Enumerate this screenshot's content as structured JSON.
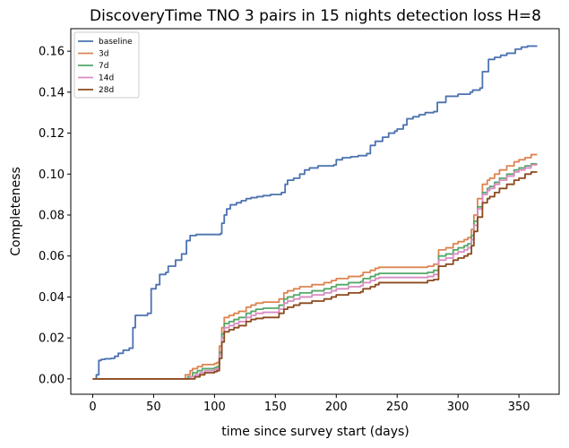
{
  "chart_data": {
    "type": "line",
    "title": "DiscoveryTime TNO 3 pairs in 15 nights detection loss H=8",
    "xlabel": "time since survey start (days)",
    "ylabel": "Completeness",
    "xlim": [
      -18,
      383
    ],
    "ylim": [
      -0.0075,
      0.171
    ],
    "x_ticks": [
      0,
      50,
      100,
      150,
      200,
      250,
      300,
      350
    ],
    "x_tick_labels": [
      "0",
      "50",
      "100",
      "150",
      "200",
      "250",
      "300",
      "350"
    ],
    "y_ticks": [
      0.0,
      0.02,
      0.04,
      0.06,
      0.08,
      0.1,
      0.12,
      0.14,
      0.16
    ],
    "y_tick_labels": [
      "0.00",
      "0.02",
      "0.04",
      "0.06",
      "0.08",
      "0.10",
      "0.12",
      "0.14",
      "0.16"
    ],
    "grid": false,
    "legend_position": "top-left",
    "series": [
      {
        "name": "baseline",
        "color": "#4c72b0",
        "points": [
          [
            0,
            0
          ],
          [
            3,
            0.002
          ],
          [
            5,
            0.009
          ],
          [
            7,
            0.0095
          ],
          [
            10,
            0.0098
          ],
          [
            15,
            0.01
          ],
          [
            18,
            0.011
          ],
          [
            21,
            0.0125
          ],
          [
            25,
            0.014
          ],
          [
            30,
            0.015
          ],
          [
            33,
            0.025
          ],
          [
            35,
            0.031
          ],
          [
            45,
            0.032
          ],
          [
            48,
            0.044
          ],
          [
            52,
            0.046
          ],
          [
            55,
            0.051
          ],
          [
            60,
            0.052
          ],
          [
            62,
            0.055
          ],
          [
            68,
            0.058
          ],
          [
            73,
            0.061
          ],
          [
            77,
            0.0675
          ],
          [
            80,
            0.07
          ],
          [
            85,
            0.0705
          ],
          [
            105,
            0.071
          ],
          [
            106,
            0.076
          ],
          [
            108,
            0.08
          ],
          [
            110,
            0.083
          ],
          [
            113,
            0.085
          ],
          [
            118,
            0.086
          ],
          [
            122,
            0.087
          ],
          [
            126,
            0.088
          ],
          [
            130,
            0.0885
          ],
          [
            135,
            0.089
          ],
          [
            140,
            0.0895
          ],
          [
            146,
            0.09
          ],
          [
            150,
            0.09
          ],
          [
            155,
            0.091
          ],
          [
            158,
            0.095
          ],
          [
            160,
            0.097
          ],
          [
            165,
            0.098
          ],
          [
            170,
            0.1
          ],
          [
            174,
            0.102
          ],
          [
            178,
            0.103
          ],
          [
            185,
            0.104
          ],
          [
            198,
            0.1045
          ],
          [
            200,
            0.107
          ],
          [
            205,
            0.108
          ],
          [
            212,
            0.1085
          ],
          [
            218,
            0.109
          ],
          [
            225,
            0.11
          ],
          [
            228,
            0.114
          ],
          [
            232,
            0.116
          ],
          [
            238,
            0.118
          ],
          [
            243,
            0.12
          ],
          [
            248,
            0.121
          ],
          [
            250,
            0.122
          ],
          [
            255,
            0.124
          ],
          [
            258,
            0.127
          ],
          [
            263,
            0.128
          ],
          [
            268,
            0.129
          ],
          [
            273,
            0.13
          ],
          [
            280,
            0.1305
          ],
          [
            283,
            0.135
          ],
          [
            290,
            0.138
          ],
          [
            300,
            0.139
          ],
          [
            310,
            0.14
          ],
          [
            312,
            0.141
          ],
          [
            318,
            0.142
          ],
          [
            320,
            0.15
          ],
          [
            325,
            0.156
          ],
          [
            330,
            0.157
          ],
          [
            335,
            0.158
          ],
          [
            340,
            0.159
          ],
          [
            347,
            0.161
          ],
          [
            352,
            0.162
          ],
          [
            357,
            0.1625
          ],
          [
            365,
            0.1625
          ]
        ]
      },
      {
        "name": "3d",
        "color": "#dd8452",
        "points": [
          [
            0,
            0
          ],
          [
            74,
            0
          ],
          [
            76,
            0.002
          ],
          [
            80,
            0.004
          ],
          [
            82,
            0.005
          ],
          [
            86,
            0.006
          ],
          [
            90,
            0.007
          ],
          [
            100,
            0.0075
          ],
          [
            102,
            0.008
          ],
          [
            104,
            0.016
          ],
          [
            106,
            0.025
          ],
          [
            108,
            0.03
          ],
          [
            112,
            0.031
          ],
          [
            116,
            0.032
          ],
          [
            120,
            0.033
          ],
          [
            126,
            0.035
          ],
          [
            130,
            0.036
          ],
          [
            134,
            0.037
          ],
          [
            140,
            0.0375
          ],
          [
            150,
            0.0375
          ],
          [
            153,
            0.039
          ],
          [
            157,
            0.042
          ],
          [
            160,
            0.043
          ],
          [
            165,
            0.044
          ],
          [
            170,
            0.045
          ],
          [
            180,
            0.046
          ],
          [
            190,
            0.047
          ],
          [
            196,
            0.048
          ],
          [
            200,
            0.049
          ],
          [
            210,
            0.05
          ],
          [
            220,
            0.0505
          ],
          [
            222,
            0.052
          ],
          [
            228,
            0.053
          ],
          [
            232,
            0.054
          ],
          [
            235,
            0.0545
          ],
          [
            250,
            0.0545
          ],
          [
            270,
            0.0545
          ],
          [
            275,
            0.055
          ],
          [
            280,
            0.056
          ],
          [
            284,
            0.063
          ],
          [
            290,
            0.064
          ],
          [
            296,
            0.066
          ],
          [
            300,
            0.067
          ],
          [
            305,
            0.068
          ],
          [
            308,
            0.069
          ],
          [
            311,
            0.073
          ],
          [
            313,
            0.08
          ],
          [
            316,
            0.088
          ],
          [
            320,
            0.095
          ],
          [
            324,
            0.097
          ],
          [
            326,
            0.098
          ],
          [
            330,
            0.1
          ],
          [
            334,
            0.102
          ],
          [
            340,
            0.104
          ],
          [
            346,
            0.106
          ],
          [
            350,
            0.107
          ],
          [
            355,
            0.108
          ],
          [
            360,
            0.1095
          ],
          [
            365,
            0.1095
          ]
        ]
      },
      {
        "name": "7d",
        "color": "#55a868",
        "points": [
          [
            0,
            0
          ],
          [
            76,
            0
          ],
          [
            78,
            0.001
          ],
          [
            82,
            0.003
          ],
          [
            86,
            0.004
          ],
          [
            90,
            0.005
          ],
          [
            100,
            0.0055
          ],
          [
            102,
            0.006
          ],
          [
            104,
            0.013
          ],
          [
            106,
            0.022
          ],
          [
            108,
            0.027
          ],
          [
            112,
            0.028
          ],
          [
            116,
            0.029
          ],
          [
            120,
            0.03
          ],
          [
            126,
            0.032
          ],
          [
            130,
            0.033
          ],
          [
            134,
            0.034
          ],
          [
            140,
            0.0345
          ],
          [
            150,
            0.0345
          ],
          [
            153,
            0.036
          ],
          [
            157,
            0.039
          ],
          [
            160,
            0.04
          ],
          [
            165,
            0.041
          ],
          [
            170,
            0.042
          ],
          [
            180,
            0.043
          ],
          [
            190,
            0.044
          ],
          [
            196,
            0.045
          ],
          [
            200,
            0.046
          ],
          [
            210,
            0.047
          ],
          [
            220,
            0.0475
          ],
          [
            222,
            0.049
          ],
          [
            228,
            0.05
          ],
          [
            232,
            0.051
          ],
          [
            235,
            0.0515
          ],
          [
            250,
            0.0515
          ],
          [
            270,
            0.0515
          ],
          [
            275,
            0.052
          ],
          [
            280,
            0.053
          ],
          [
            284,
            0.06
          ],
          [
            290,
            0.061
          ],
          [
            296,
            0.063
          ],
          [
            300,
            0.064
          ],
          [
            305,
            0.065
          ],
          [
            308,
            0.066
          ],
          [
            311,
            0.07
          ],
          [
            313,
            0.077
          ],
          [
            316,
            0.084
          ],
          [
            320,
            0.091
          ],
          [
            324,
            0.093
          ],
          [
            326,
            0.094
          ],
          [
            330,
            0.096
          ],
          [
            334,
            0.098
          ],
          [
            340,
            0.1
          ],
          [
            346,
            0.102
          ],
          [
            350,
            0.103
          ],
          [
            355,
            0.104
          ],
          [
            360,
            0.105
          ],
          [
            365,
            0.105
          ]
        ]
      },
      {
        "name": "14d",
        "color": "#da8bc3",
        "points": [
          [
            0,
            0
          ],
          [
            78,
            0
          ],
          [
            80,
            0.001
          ],
          [
            84,
            0.002
          ],
          [
            88,
            0.003
          ],
          [
            92,
            0.004
          ],
          [
            100,
            0.0045
          ],
          [
            102,
            0.005
          ],
          [
            104,
            0.012
          ],
          [
            106,
            0.02
          ],
          [
            108,
            0.025
          ],
          [
            112,
            0.026
          ],
          [
            116,
            0.027
          ],
          [
            120,
            0.028
          ],
          [
            126,
            0.03
          ],
          [
            130,
            0.031
          ],
          [
            134,
            0.032
          ],
          [
            140,
            0.0325
          ],
          [
            150,
            0.0325
          ],
          [
            153,
            0.034
          ],
          [
            157,
            0.037
          ],
          [
            160,
            0.038
          ],
          [
            165,
            0.039
          ],
          [
            170,
            0.04
          ],
          [
            180,
            0.041
          ],
          [
            190,
            0.042
          ],
          [
            196,
            0.043
          ],
          [
            200,
            0.044
          ],
          [
            210,
            0.045
          ],
          [
            220,
            0.0455
          ],
          [
            222,
            0.047
          ],
          [
            228,
            0.048
          ],
          [
            232,
            0.049
          ],
          [
            235,
            0.0495
          ],
          [
            250,
            0.0495
          ],
          [
            270,
            0.0495
          ],
          [
            275,
            0.05
          ],
          [
            280,
            0.051
          ],
          [
            284,
            0.058
          ],
          [
            290,
            0.059
          ],
          [
            296,
            0.061
          ],
          [
            300,
            0.062
          ],
          [
            305,
            0.063
          ],
          [
            308,
            0.064
          ],
          [
            311,
            0.068
          ],
          [
            313,
            0.075
          ],
          [
            316,
            0.083
          ],
          [
            320,
            0.09
          ],
          [
            324,
            0.092
          ],
          [
            326,
            0.093
          ],
          [
            330,
            0.095
          ],
          [
            334,
            0.097
          ],
          [
            340,
            0.099
          ],
          [
            346,
            0.101
          ],
          [
            350,
            0.102
          ],
          [
            355,
            0.103
          ],
          [
            360,
            0.1045
          ],
          [
            365,
            0.1045
          ]
        ]
      },
      {
        "name": "28d",
        "color": "#8c4a1e",
        "points": [
          [
            0,
            0
          ],
          [
            80,
            0
          ],
          [
            84,
            0.001
          ],
          [
            88,
            0.002
          ],
          [
            92,
            0.003
          ],
          [
            100,
            0.0035
          ],
          [
            102,
            0.004
          ],
          [
            104,
            0.01
          ],
          [
            106,
            0.018
          ],
          [
            108,
            0.023
          ],
          [
            112,
            0.024
          ],
          [
            116,
            0.025
          ],
          [
            120,
            0.026
          ],
          [
            126,
            0.028
          ],
          [
            130,
            0.029
          ],
          [
            134,
            0.0295
          ],
          [
            140,
            0.03
          ],
          [
            150,
            0.03
          ],
          [
            153,
            0.032
          ],
          [
            157,
            0.034
          ],
          [
            160,
            0.035
          ],
          [
            165,
            0.036
          ],
          [
            170,
            0.037
          ],
          [
            180,
            0.038
          ],
          [
            190,
            0.039
          ],
          [
            196,
            0.04
          ],
          [
            200,
            0.041
          ],
          [
            210,
            0.042
          ],
          [
            220,
            0.0425
          ],
          [
            222,
            0.044
          ],
          [
            228,
            0.045
          ],
          [
            232,
            0.046
          ],
          [
            235,
            0.047
          ],
          [
            250,
            0.047
          ],
          [
            270,
            0.047
          ],
          [
            275,
            0.048
          ],
          [
            280,
            0.0485
          ],
          [
            284,
            0.055
          ],
          [
            290,
            0.056
          ],
          [
            296,
            0.058
          ],
          [
            300,
            0.059
          ],
          [
            305,
            0.06
          ],
          [
            308,
            0.061
          ],
          [
            311,
            0.065
          ],
          [
            313,
            0.072
          ],
          [
            316,
            0.079
          ],
          [
            320,
            0.086
          ],
          [
            324,
            0.088
          ],
          [
            326,
            0.089
          ],
          [
            330,
            0.091
          ],
          [
            334,
            0.093
          ],
          [
            340,
            0.095
          ],
          [
            346,
            0.097
          ],
          [
            350,
            0.098
          ],
          [
            355,
            0.1
          ],
          [
            360,
            0.101
          ],
          [
            365,
            0.101
          ]
        ]
      }
    ]
  }
}
